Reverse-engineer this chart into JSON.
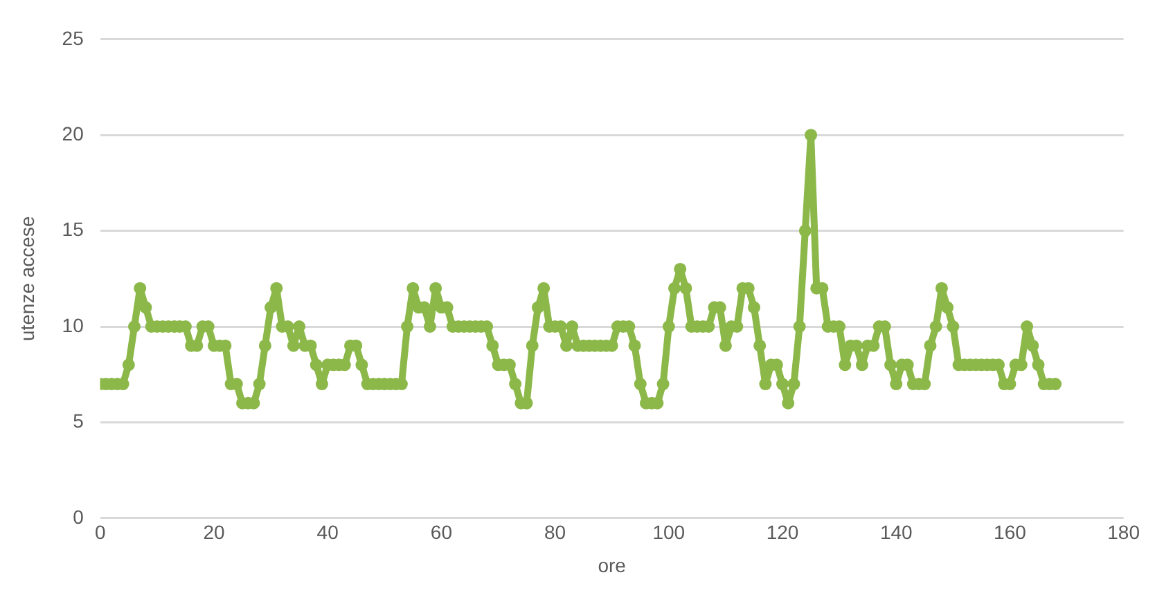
{
  "chart_data": {
    "type": "line",
    "xlabel": "ore",
    "ylabel": "utenze accese",
    "x": [
      0,
      1,
      2,
      3,
      4,
      5,
      6,
      7,
      8,
      9,
      10,
      11,
      12,
      13,
      14,
      15,
      16,
      17,
      18,
      19,
      20,
      21,
      22,
      23,
      24,
      25,
      26,
      27,
      28,
      29,
      30,
      31,
      32,
      33,
      34,
      35,
      36,
      37,
      38,
      39,
      40,
      41,
      42,
      43,
      44,
      45,
      46,
      47,
      48,
      49,
      50,
      51,
      52,
      53,
      54,
      55,
      56,
      57,
      58,
      59,
      60,
      61,
      62,
      63,
      64,
      65,
      66,
      67,
      68,
      69,
      70,
      71,
      72,
      73,
      74,
      75,
      76,
      77,
      78,
      79,
      80,
      81,
      82,
      83,
      84,
      85,
      86,
      87,
      88,
      89,
      90,
      91,
      92,
      93,
      94,
      95,
      96,
      97,
      98,
      99,
      100,
      101,
      102,
      103,
      104,
      105,
      106,
      107,
      108,
      109,
      110,
      111,
      112,
      113,
      114,
      115,
      116,
      117,
      118,
      119,
      120,
      121,
      122,
      123,
      124,
      125,
      126,
      127,
      128,
      129,
      130,
      131,
      132,
      133,
      134,
      135,
      136,
      137,
      138,
      139,
      140,
      141,
      142,
      143,
      144,
      145,
      146,
      147,
      148,
      149,
      150,
      151,
      152,
      153,
      154,
      155,
      156,
      157,
      158,
      159,
      160,
      161,
      162,
      163,
      164,
      165,
      166,
      167,
      168
    ],
    "series": [
      {
        "color": "#8cb84a",
        "values": [
          7,
          7,
          7,
          7,
          7,
          8,
          10,
          12,
          11,
          10,
          10,
          10,
          10,
          10,
          10,
          10,
          9,
          9,
          10,
          10,
          9,
          9,
          9,
          7,
          7,
          6,
          6,
          6,
          7,
          9,
          11,
          12,
          10,
          10,
          9,
          10,
          9,
          9,
          8,
          7,
          8,
          8,
          8,
          8,
          9,
          9,
          8,
          7,
          7,
          7,
          7,
          7,
          7,
          7,
          10,
          12,
          11,
          11,
          10,
          12,
          11,
          11,
          10,
          10,
          10,
          10,
          10,
          10,
          10,
          9,
          8,
          8,
          8,
          7,
          6,
          6,
          9,
          11,
          12,
          10,
          10,
          10,
          9,
          10,
          9,
          9,
          9,
          9,
          9,
          9,
          9,
          10,
          10,
          10,
          9,
          7,
          6,
          6,
          6,
          7,
          10,
          12,
          13,
          12,
          10,
          10,
          10,
          10,
          11,
          11,
          9,
          10,
          10,
          12,
          12,
          11,
          9,
          7,
          8,
          8,
          7,
          6,
          7,
          10,
          15,
          20,
          12,
          12,
          10,
          10,
          10,
          8,
          9,
          9,
          8,
          9,
          9,
          10,
          10,
          8,
          7,
          8,
          8,
          7,
          7,
          7,
          9,
          10,
          12,
          11,
          10,
          8,
          8,
          8,
          8,
          8,
          8,
          8,
          8,
          7,
          7,
          8,
          8,
          10,
          9,
          8,
          7,
          7,
          7
        ]
      }
    ],
    "xlim": [
      0,
      180
    ],
    "xticks": [
      0,
      20,
      40,
      60,
      80,
      100,
      120,
      140,
      160,
      180
    ],
    "ylim": [
      0,
      25
    ],
    "yticks": [
      0,
      5,
      10,
      15,
      20,
      25
    ],
    "grid": "y",
    "legend": false,
    "marker": "circle",
    "line_style": "solid"
  }
}
